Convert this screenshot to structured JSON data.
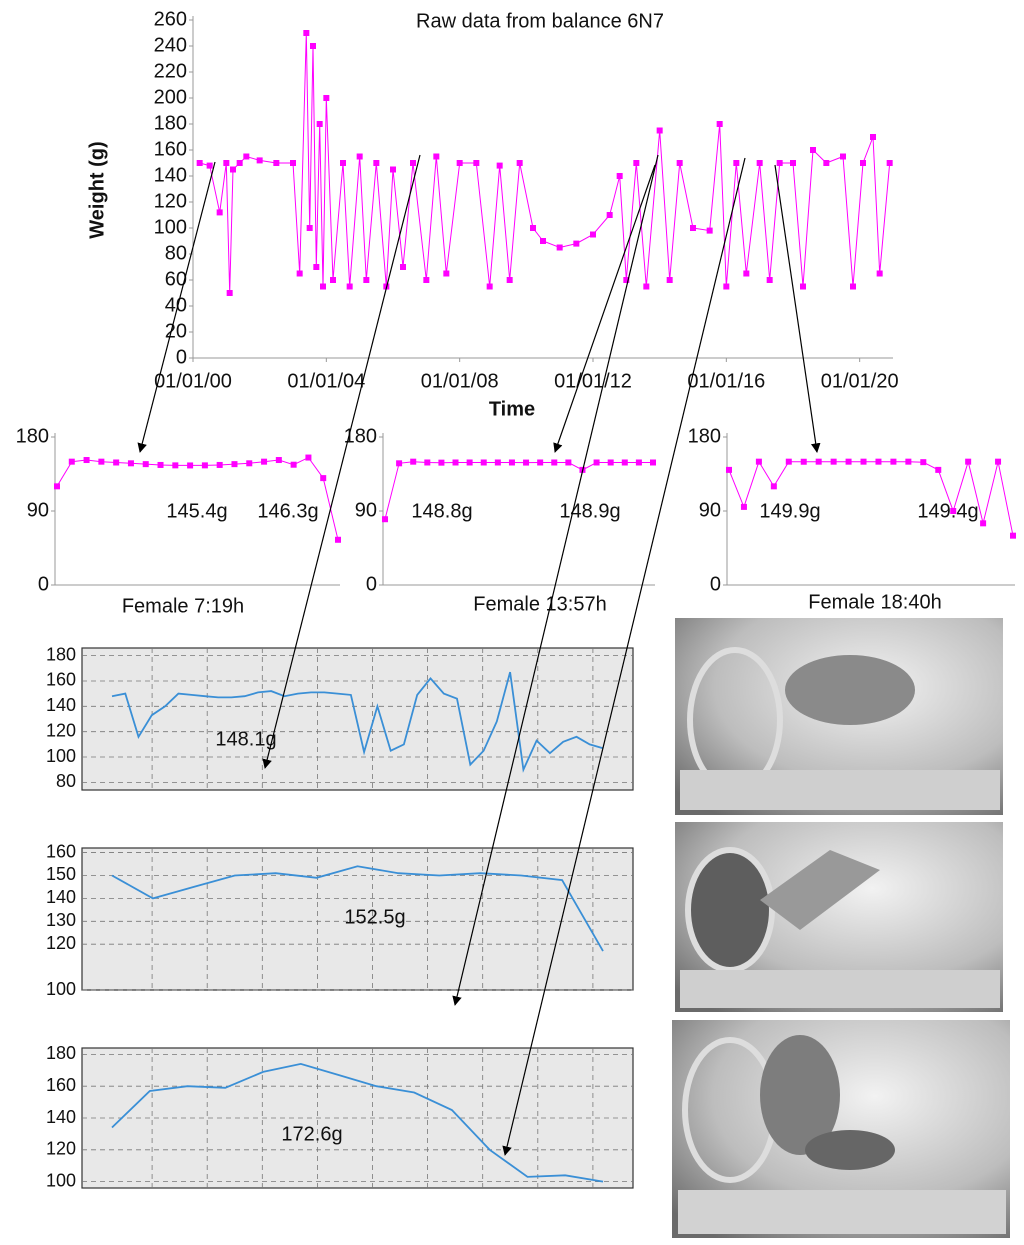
{
  "chart_data": [
    {
      "type": "line",
      "markers": true,
      "title": "Raw data from balance 6N7",
      "y_label": "Weight (g)",
      "x_label": "Time",
      "color": "#ff00ff",
      "x": [
        0.2,
        0.5,
        0.8,
        1.0,
        1.1,
        1.2,
        1.4,
        1.6,
        2.0,
        2.5,
        3.0,
        3.2,
        3.4,
        3.5,
        3.6,
        3.7,
        3.8,
        3.9,
        4.0,
        4.2,
        4.5,
        4.7,
        5.0,
        5.2,
        5.5,
        5.8,
        6.0,
        6.3,
        6.6,
        7.0,
        7.3,
        7.6,
        8.0,
        8.5,
        8.9,
        9.2,
        9.5,
        9.8,
        10.2,
        10.5,
        11.0,
        11.5,
        12.0,
        12.5,
        12.8,
        13.0,
        13.3,
        13.6,
        14.0,
        14.3,
        14.6,
        15.0,
        15.5,
        15.8,
        16.0,
        16.3,
        16.6,
        17.0,
        17.3,
        17.6,
        18.0,
        18.3,
        18.6,
        19.0,
        19.5,
        19.8,
        20.1,
        20.4,
        20.6,
        20.9
      ],
      "values": [
        150,
        148,
        112,
        150,
        50,
        145,
        150,
        155,
        152,
        150,
        150,
        65,
        250,
        100,
        240,
        70,
        180,
        55,
        200,
        60,
        150,
        55,
        155,
        60,
        150,
        55,
        145,
        70,
        150,
        60,
        155,
        65,
        150,
        150,
        55,
        148,
        60,
        150,
        100,
        90,
        85,
        88,
        95,
        110,
        140,
        60,
        150,
        55,
        175,
        60,
        150,
        100,
        98,
        180,
        55,
        150,
        65,
        150,
        60,
        150,
        150,
        55,
        160,
        150,
        155,
        55,
        150,
        170,
        65,
        150
      ],
      "xlim": [
        0,
        21
      ],
      "ylim": [
        0,
        260
      ],
      "xticks": [
        {
          "value": 0,
          "label": "01/01/00"
        },
        {
          "value": 4,
          "label": "01/01/04"
        },
        {
          "value": 8,
          "label": "01/01/08"
        },
        {
          "value": 12,
          "label": "01/01/12"
        },
        {
          "value": 16,
          "label": "01/01/16"
        },
        {
          "value": 20,
          "label": "01/01/20"
        }
      ],
      "yticks": [
        0,
        20,
        40,
        60,
        80,
        100,
        120,
        140,
        160,
        180,
        200,
        220,
        240,
        260
      ]
    },
    {
      "type": "line",
      "markers": true,
      "color": "#ff00ff",
      "caption": "Female 7:19h",
      "annotations": [
        "145.4g",
        "146.3g"
      ],
      "values": [
        120,
        150,
        152,
        150,
        149,
        148,
        147,
        146,
        145.5,
        145.4,
        145.5,
        146,
        147,
        148,
        150,
        152,
        146.3,
        155,
        130,
        55
      ],
      "ylim": [
        0,
        180
      ],
      "yticks": [
        0,
        90,
        180
      ]
    },
    {
      "type": "line",
      "markers": true,
      "color": "#ff00ff",
      "caption": "Female 13:57h",
      "annotations": [
        "148.8g",
        "148.9g"
      ],
      "values": [
        80,
        148,
        150,
        149,
        148.8,
        149,
        149,
        149,
        149,
        149,
        148.9,
        149,
        149,
        149,
        140,
        149,
        149,
        149,
        149,
        149
      ],
      "ylim": [
        0,
        180
      ],
      "yticks": [
        0,
        90,
        180
      ]
    },
    {
      "type": "line",
      "markers": true,
      "color": "#ff00ff",
      "caption": "Female 18:40h",
      "annotations": [
        "149.9g",
        "149.4g"
      ],
      "values": [
        140,
        95,
        150,
        120,
        150,
        149.9,
        150,
        150,
        150,
        150,
        150,
        150,
        150,
        149.4,
        140,
        90,
        150,
        75,
        150,
        60
      ],
      "ylim": [
        0,
        180
      ],
      "yticks": [
        0,
        90,
        180
      ]
    },
    {
      "type": "line",
      "markers": false,
      "color": "#3a8fd6",
      "grid": true,
      "annotations": [
        "148.1g"
      ],
      "values": [
        148,
        150,
        116,
        133,
        140,
        150,
        149,
        148,
        147,
        147,
        148,
        151,
        152,
        148,
        150,
        151,
        151,
        150,
        149,
        104,
        140,
        105,
        110,
        149,
        162,
        150,
        146,
        94,
        105,
        128,
        167,
        90,
        113,
        103,
        112,
        116,
        110,
        107
      ],
      "ylim": [
        74,
        186
      ],
      "yticks": [
        80,
        100,
        120,
        140,
        160,
        180
      ]
    },
    {
      "type": "line",
      "markers": false,
      "color": "#3a8fd6",
      "grid": true,
      "annotations": [
        "152.5g"
      ],
      "values": [
        150,
        140,
        145,
        150,
        151,
        149,
        154,
        151,
        150,
        151,
        150,
        148,
        117
      ],
      "ylim": [
        100,
        162
      ],
      "yticks": [
        100,
        120,
        130,
        140,
        150,
        160
      ]
    },
    {
      "type": "line",
      "markers": false,
      "color": "#3a8fd6",
      "grid": true,
      "annotations": [
        "172.6g"
      ],
      "values": [
        134,
        157,
        160,
        159,
        169,
        174,
        167,
        160,
        156,
        145,
        120,
        103,
        104,
        100
      ],
      "ylim": [
        96,
        184
      ],
      "yticks": [
        100,
        120,
        140,
        160,
        180
      ]
    }
  ]
}
